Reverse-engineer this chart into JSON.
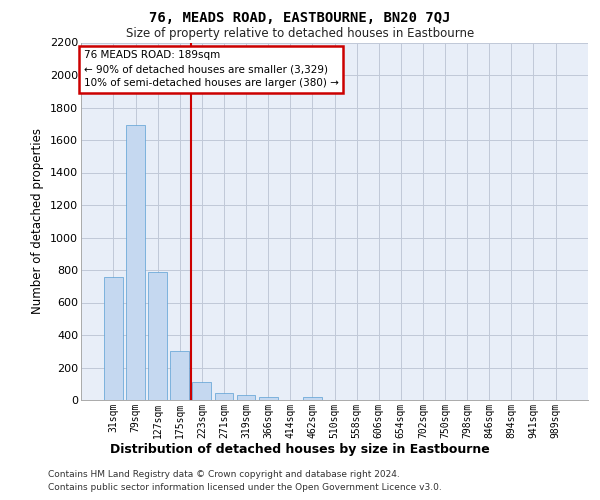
{
  "title": "76, MEADS ROAD, EASTBOURNE, BN20 7QJ",
  "subtitle": "Size of property relative to detached houses in Eastbourne",
  "xlabel": "Distribution of detached houses by size in Eastbourne",
  "ylabel": "Number of detached properties",
  "categories": [
    "31sqm",
    "79sqm",
    "127sqm",
    "175sqm",
    "223sqm",
    "271sqm",
    "319sqm",
    "366sqm",
    "414sqm",
    "462sqm",
    "510sqm",
    "558sqm",
    "606sqm",
    "654sqm",
    "702sqm",
    "750sqm",
    "798sqm",
    "846sqm",
    "894sqm",
    "941sqm",
    "989sqm"
  ],
  "values": [
    760,
    1690,
    790,
    300,
    110,
    45,
    32,
    20,
    0,
    20,
    0,
    0,
    0,
    0,
    0,
    0,
    0,
    0,
    0,
    0,
    0
  ],
  "bar_color": "#c5d8f0",
  "bar_edge_color": "#5a9fd4",
  "grid_color": "#c0c8d8",
  "background_color": "#e8eef8",
  "vline_x_pos": 3.5,
  "vline_color": "#cc0000",
  "annotation_text": "76 MEADS ROAD: 189sqm\n← 90% of detached houses are smaller (3,329)\n10% of semi-detached houses are larger (380) →",
  "annotation_box_color": "#cc0000",
  "ylim": [
    0,
    2200
  ],
  "yticks": [
    0,
    200,
    400,
    600,
    800,
    1000,
    1200,
    1400,
    1600,
    1800,
    2000,
    2200
  ],
  "footer_line1": "Contains HM Land Registry data © Crown copyright and database right 2024.",
  "footer_line2": "Contains public sector information licensed under the Open Government Licence v3.0."
}
